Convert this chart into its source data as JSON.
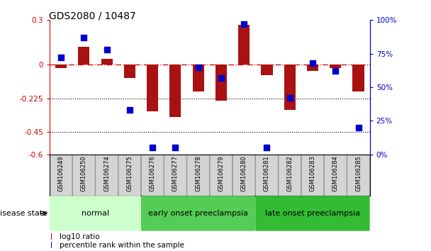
{
  "title": "GDS2080 / 10487",
  "samples": [
    "GSM106249",
    "GSM106250",
    "GSM106274",
    "GSM106275",
    "GSM106276",
    "GSM106277",
    "GSM106278",
    "GSM106279",
    "GSM106280",
    "GSM106281",
    "GSM106282",
    "GSM106283",
    "GSM106284",
    "GSM106285"
  ],
  "log10_ratio": [
    -0.02,
    0.12,
    0.04,
    -0.09,
    -0.31,
    -0.35,
    -0.18,
    -0.24,
    0.27,
    -0.07,
    -0.3,
    -0.04,
    -0.02,
    -0.18
  ],
  "percentile_rank": [
    72,
    87,
    78,
    33,
    5,
    5,
    65,
    57,
    97,
    5,
    42,
    68,
    62,
    20
  ],
  "groups": [
    {
      "label": "normal",
      "start": 0,
      "end": 4,
      "color": "#ccffcc"
    },
    {
      "label": "early onset preeclampsia",
      "start": 4,
      "end": 9,
      "color": "#55cc55"
    },
    {
      "label": "late onset preeclampsia",
      "start": 9,
      "end": 14,
      "color": "#33bb33"
    }
  ],
  "bar_color": "#aa1111",
  "dot_color": "#0000cc",
  "dashed_line_color": "#cc0000",
  "ylim_left": [
    -0.6,
    0.3
  ],
  "ylim_right": [
    0,
    100
  ],
  "yticks_left": [
    0.3,
    0,
    -0.225,
    -0.45,
    -0.6
  ],
  "yticks_right": [
    100,
    75,
    50,
    25,
    0
  ],
  "ytick_labels_left": [
    "0.3",
    "0",
    "-0.225",
    "-0.45",
    "-0.6"
  ],
  "ytick_labels_right": [
    "100%",
    "75%",
    "50%",
    "25%",
    "0%"
  ],
  "hlines": [
    -0.225,
    -0.45
  ],
  "legend_log10": "log10 ratio",
  "legend_pct": "percentile rank within the sample",
  "disease_state_label": "disease state",
  "title_fontsize": 10,
  "tick_fontsize": 7.5,
  "sample_fontsize": 6.0,
  "group_fontsize": 8,
  "legend_fontsize": 7.5,
  "bar_width": 0.5,
  "dot_size": 28
}
